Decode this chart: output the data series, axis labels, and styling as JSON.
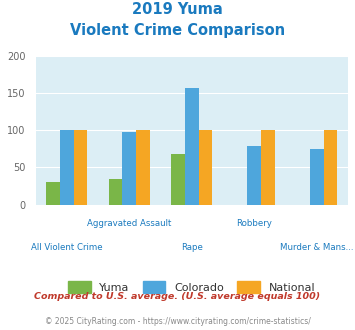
{
  "title_line1": "2019 Yuma",
  "title_line2": "Violent Crime Comparison",
  "title_color": "#1a7abf",
  "yuma_values": [
    31,
    35,
    68,
    0,
    0
  ],
  "colorado_values": [
    100,
    98,
    157,
    79,
    75
  ],
  "national_values": [
    100,
    100,
    100,
    100,
    100
  ],
  "yuma_color": "#7ab648",
  "colorado_color": "#4ea6dc",
  "national_color": "#f5a623",
  "ylim": [
    0,
    200
  ],
  "yticks": [
    0,
    50,
    100,
    150,
    200
  ],
  "bg_color": "#dceef5",
  "legend_labels": [
    "Yuma",
    "Colorado",
    "National"
  ],
  "cat_top": [
    "",
    "Aggravated Assault",
    "",
    "Robbery",
    ""
  ],
  "cat_bottom": [
    "All Violent Crime",
    "",
    "Rape",
    "",
    "Murder & Mans..."
  ],
  "footnote1": "Compared to U.S. average. (U.S. average equals 100)",
  "footnote2": "© 2025 CityRating.com - https://www.cityrating.com/crime-statistics/",
  "footnote1_color": "#c0392b",
  "footnote2_color": "#888888",
  "xlabel_color": "#1a7abf"
}
